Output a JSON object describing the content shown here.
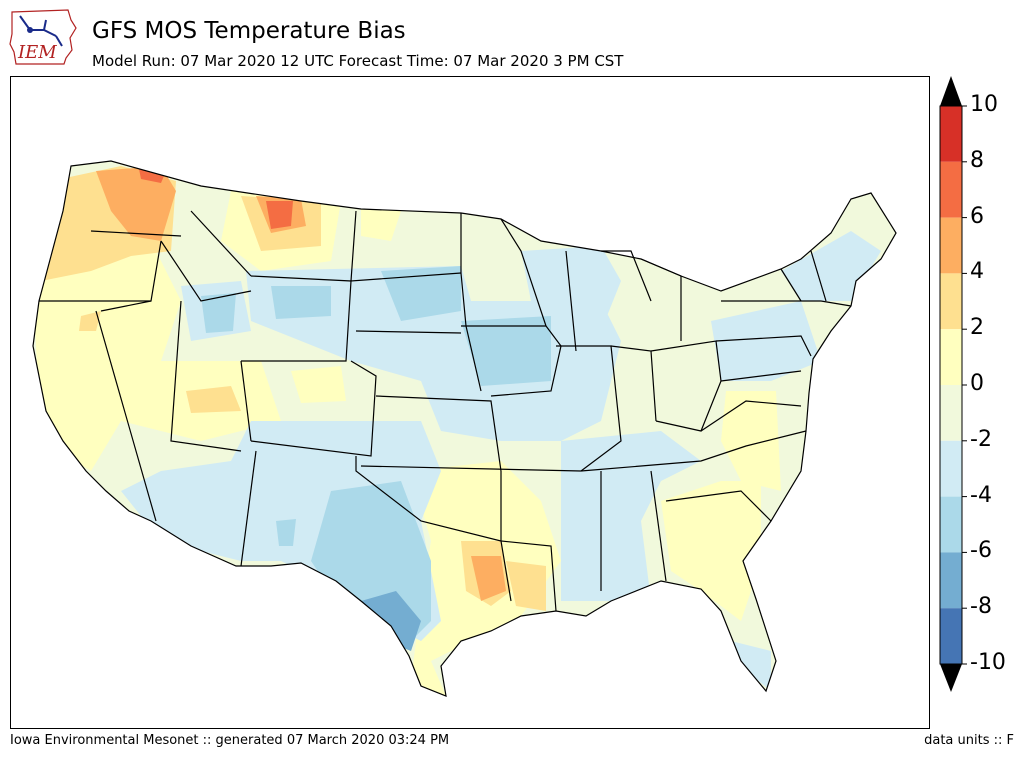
{
  "header": {
    "logo_text": "IEM",
    "title": "GFS MOS Temperature Bias",
    "subtitle": "Model Run: 07 Mar 2020 12 UTC Forecast Time: 07 Mar 2020 3 PM CST"
  },
  "colorbar": {
    "levels": [
      "10",
      "8",
      "6",
      "4",
      "2",
      "0",
      "-2",
      "-4",
      "-6",
      "-8",
      "-10"
    ],
    "colors": [
      "#d73027",
      "#f46d43",
      "#fdae61",
      "#fee090",
      "#ffffbf",
      "#f1f9dc",
      "#d1ebf4",
      "#abd9e9",
      "#74add1",
      "#4575b4"
    ],
    "over_color": "#000000",
    "under_color": "#000000"
  },
  "map": {
    "region": "CONUS",
    "field": "GFS MOS temperature bias",
    "regions": [
      {
        "name": "pacific-northwest-warm",
        "bias_range": [
          2,
          4
        ]
      },
      {
        "name": "washington-hotspot",
        "bias_range": [
          6,
          8
        ]
      },
      {
        "name": "montana-hotspot",
        "bias_range": [
          6,
          8
        ]
      },
      {
        "name": "texas-cold",
        "bias_range": [
          -8,
          -6
        ]
      },
      {
        "name": "iowa-minnesota-cold",
        "bias_range": [
          -6,
          -4
        ]
      },
      {
        "name": "louisiana-arkansas-warm",
        "bias_range": [
          2,
          4
        ]
      },
      {
        "name": "southeast-warm",
        "bias_range": [
          0,
          2
        ]
      }
    ]
  },
  "footer": {
    "left": "Iowa Environmental Mesonet :: generated 07 March 2020 03:24 PM",
    "right": "data units :: F"
  }
}
